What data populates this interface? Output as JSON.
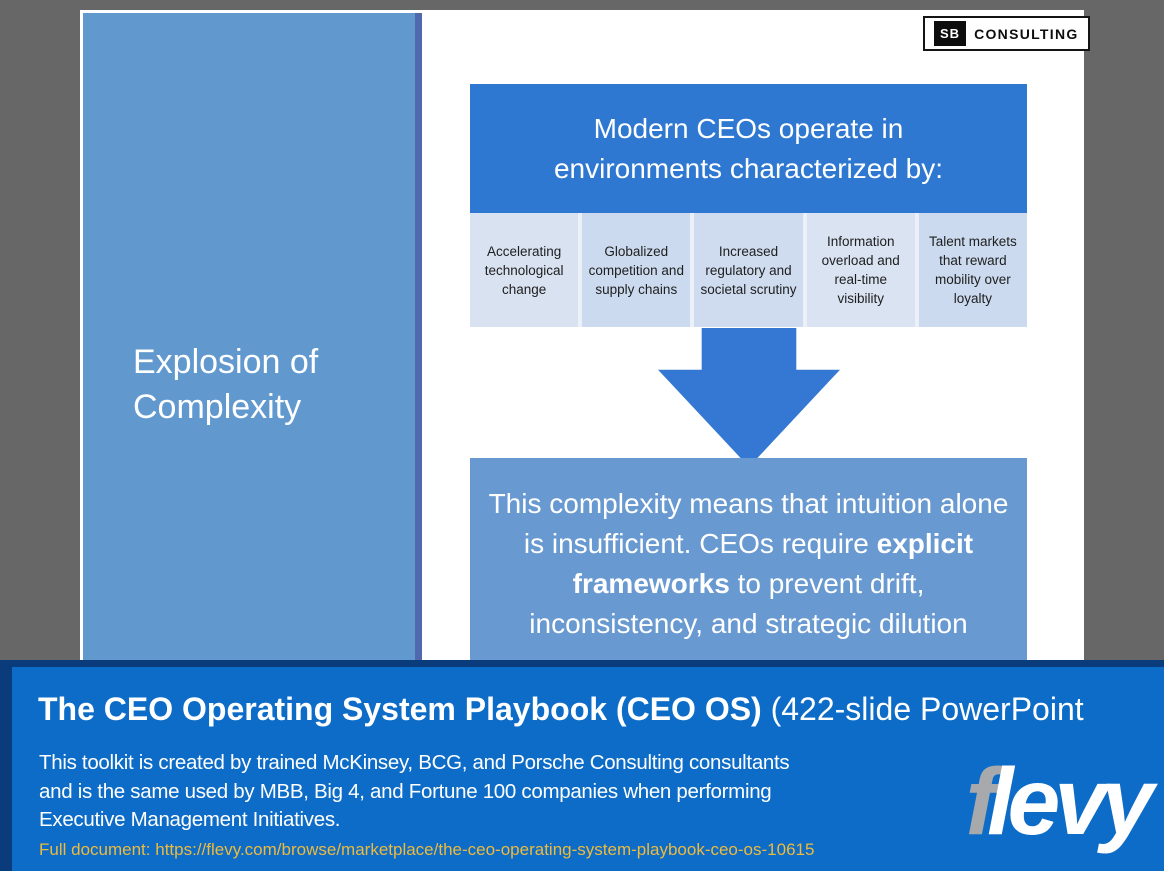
{
  "slide": {
    "logo": {
      "mark": "SB",
      "text": "CONSULTING"
    },
    "sidebar_title": "Explosion of\nComplexity",
    "header": "Modern CEOs operate in\nenvironments characterized by:",
    "environment_boxes": [
      "Accelerating technological change",
      "Globalized competition and supply chains",
      "Increased regulatory and societal scrutiny",
      "Information overload and real-time visibility",
      "Talent markets that reward mobility over loyalty"
    ],
    "conclusion": {
      "before_bold": "This complexity means that intuition alone is insufficient. CEOs require ",
      "bold": "explicit frameworks",
      "after_bold": " to prevent drift, inconsistency, and strategic dilution"
    }
  },
  "banner": {
    "title_bold": "The CEO Operating System Playbook (CEO OS)",
    "title_regular": " (422-slide PowerPoint",
    "description_lines": [
      "This toolkit is created by trained McKinsey, BCG, and Porsche Consulting consultants",
      "and is the same used by MBB, Big 4, and Fortune 100 companies when performing",
      "Executive Management Initiatives."
    ],
    "link_prefix": "Full document: ",
    "link_url": "https://flevy.com/browse/marketplace/the-ceo-operating-system-playbook-ceo-os-10615",
    "logo": {
      "f": "f",
      "levy": "levy"
    }
  },
  "colors": {
    "page_background": "#676767",
    "sidebar_blue": "#6199CF",
    "sidebar_border": "#4F68AE",
    "header_blue": "#2E78D2",
    "arrow_blue": "#3478D3",
    "conclusion_blue": "#6899D1",
    "banner_blue": "#0D6CC7",
    "banner_border_navy": "#0A3C7B",
    "link_gold": "#EDBA3D",
    "flevy_f_gray": "#A7A9AC"
  }
}
